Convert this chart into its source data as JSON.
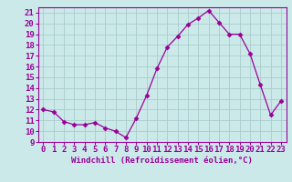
{
  "x": [
    0,
    1,
    2,
    3,
    4,
    5,
    6,
    7,
    8,
    9,
    10,
    11,
    12,
    13,
    14,
    15,
    16,
    17,
    18,
    19,
    20,
    21,
    22,
    23
  ],
  "y": [
    12.0,
    11.8,
    10.9,
    10.6,
    10.6,
    10.8,
    10.3,
    10.0,
    9.4,
    11.2,
    13.3,
    15.8,
    17.8,
    18.8,
    19.9,
    20.5,
    21.2,
    20.1,
    19.0,
    19.0,
    17.2,
    14.3,
    11.5,
    12.8
  ],
  "line_color": "#990099",
  "marker": "D",
  "marker_size": 2.5,
  "bg_color": "#cce9e9",
  "grid_color": "#aacccc",
  "xlabel": "Windchill (Refroidissement éolien,°C)",
  "xlim": [
    -0.5,
    23.5
  ],
  "ylim": [
    9,
    21.5
  ],
  "yticks": [
    9,
    10,
    11,
    12,
    13,
    14,
    15,
    16,
    17,
    18,
    19,
    20,
    21
  ],
  "xticks": [
    0,
    1,
    2,
    3,
    4,
    5,
    6,
    7,
    8,
    9,
    10,
    11,
    12,
    13,
    14,
    15,
    16,
    17,
    18,
    19,
    20,
    21,
    22,
    23
  ],
  "xlabel_fontsize": 6.5,
  "tick_fontsize": 6.5
}
